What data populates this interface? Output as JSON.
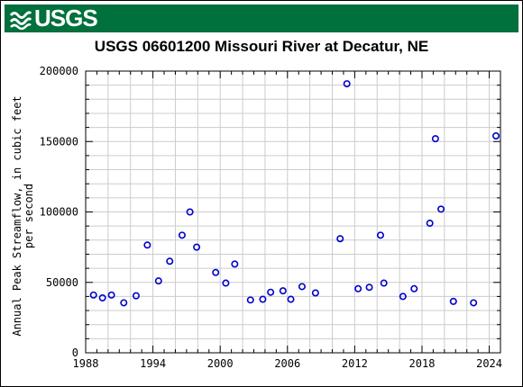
{
  "header": {
    "logo_text": "USGS",
    "logo_icon": "usgs-wave-logo-icon",
    "brand_color": "#00703c"
  },
  "chart_data": {
    "type": "scatter",
    "title": "USGS 06601200 Missouri River at Decatur, NE",
    "ylabel_line1": "Annual Peak Streamflow, in cubic feet",
    "ylabel_line2": "per second",
    "xlabel": "",
    "xlim": [
      1988,
      2025
    ],
    "ylim": [
      0,
      200000
    ],
    "xticks": [
      1988,
      1994,
      2000,
      2006,
      2012,
      2018,
      2024
    ],
    "yticks": [
      0,
      50000,
      100000,
      150000,
      200000
    ],
    "grid": true,
    "marker_color": "#0000cc",
    "series": [
      {
        "points": [
          [
            1988.7,
            41000
          ],
          [
            1989.5,
            39000
          ],
          [
            1990.3,
            41000
          ],
          [
            1991.4,
            35500
          ],
          [
            1992.5,
            40500
          ],
          [
            1993.5,
            76500
          ],
          [
            1994.5,
            51000
          ],
          [
            1995.5,
            65000
          ],
          [
            1996.6,
            83500
          ],
          [
            1997.3,
            100000
          ],
          [
            1997.9,
            75000
          ],
          [
            1999.6,
            57000
          ],
          [
            2000.5,
            49500
          ],
          [
            2001.3,
            63000
          ],
          [
            2002.7,
            37500
          ],
          [
            2003.8,
            38000
          ],
          [
            2004.5,
            43000
          ],
          [
            2005.6,
            44000
          ],
          [
            2006.3,
            38000
          ],
          [
            2007.3,
            47000
          ],
          [
            2008.5,
            42500
          ],
          [
            2010.7,
            81000
          ],
          [
            2011.3,
            191000
          ],
          [
            2012.3,
            45500
          ],
          [
            2013.3,
            46500
          ],
          [
            2014.3,
            83500
          ],
          [
            2014.6,
            49500
          ],
          [
            2016.3,
            40000
          ],
          [
            2017.3,
            45500
          ],
          [
            2018.7,
            92000
          ],
          [
            2019.2,
            152000
          ],
          [
            2019.7,
            102000
          ],
          [
            2020.8,
            36500
          ],
          [
            2022.6,
            35500
          ],
          [
            2024.6,
            154000
          ]
        ]
      }
    ]
  }
}
